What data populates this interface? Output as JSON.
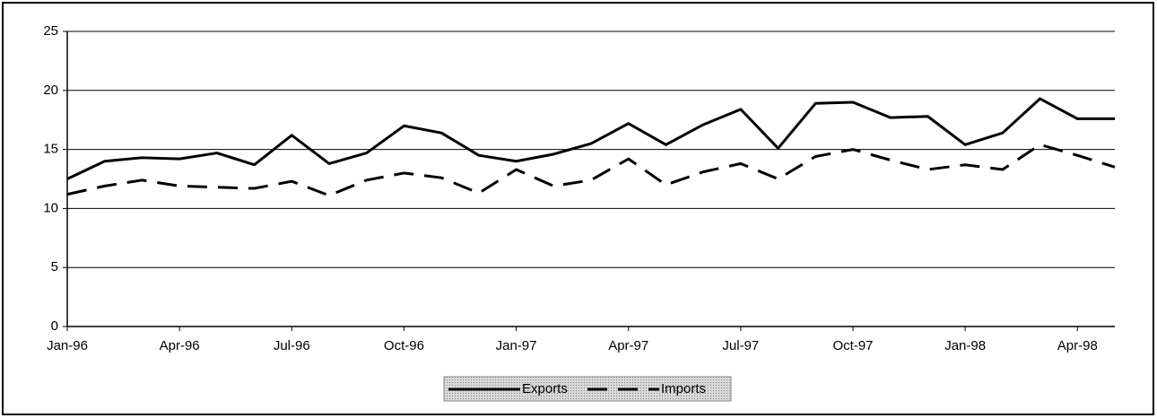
{
  "chart_data": {
    "type": "line",
    "categories": [
      "Jan-96",
      null,
      null,
      "Apr-96",
      null,
      null,
      "Jul-96",
      null,
      null,
      "Oct-96",
      null,
      null,
      "Jan-97",
      null,
      null,
      "Apr-97",
      null,
      null,
      "Jul-97",
      null,
      null,
      "Oct-97",
      null,
      null,
      "Jan-98",
      null,
      null,
      "Apr-98",
      null
    ],
    "series": [
      {
        "name": "Exports",
        "color": "#000000",
        "line_style": "solid",
        "values": [
          12.5,
          14.0,
          14.3,
          14.2,
          14.7,
          13.7,
          16.2,
          13.8,
          14.7,
          17.0,
          16.4,
          14.5,
          14.0,
          14.6,
          15.5,
          17.2,
          15.4,
          17.1,
          18.4,
          15.1,
          18.9,
          19.0,
          17.7,
          17.8,
          15.4,
          16.4,
          19.3,
          17.6,
          17.6
        ]
      },
      {
        "name": "Imports",
        "color": "#000000",
        "line_style": "dashed",
        "values": [
          11.2,
          11.9,
          12.4,
          11.9,
          11.8,
          11.7,
          12.3,
          11.1,
          12.4,
          13.0,
          12.6,
          11.3,
          13.3,
          11.9,
          12.4,
          14.2,
          12.0,
          13.1,
          13.8,
          12.5,
          14.4,
          15.0,
          14.1,
          13.3,
          13.7,
          13.3,
          15.4,
          14.5,
          13.5
        ]
      }
    ],
    "ylim": [
      0,
      25
    ],
    "yticks": [
      0,
      5,
      10,
      15,
      20,
      25
    ],
    "grid": true,
    "legend": "bottom"
  }
}
